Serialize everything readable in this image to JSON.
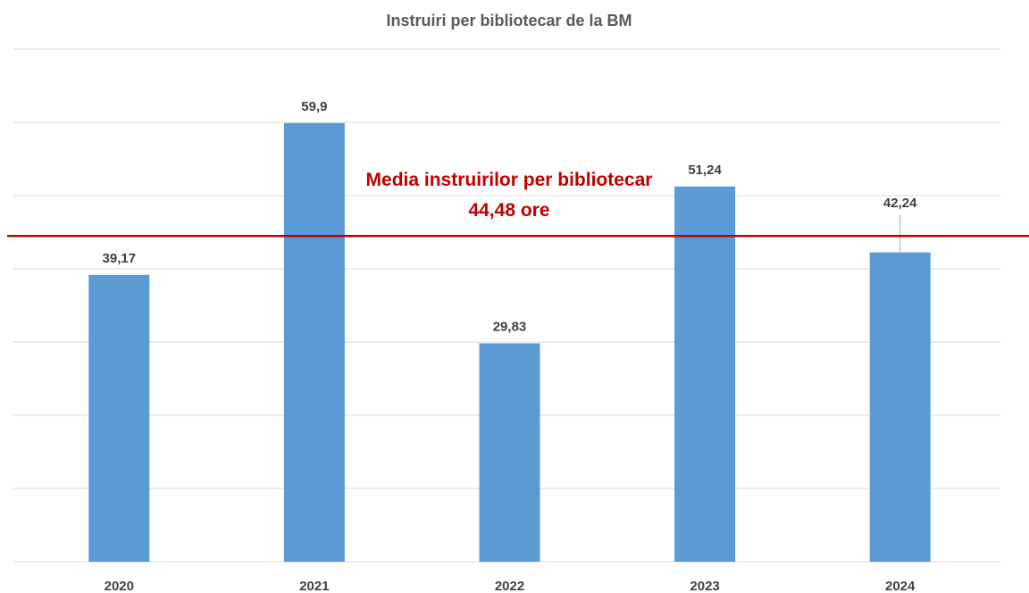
{
  "chart_data": {
    "type": "bar",
    "title": "Instruiri per bibliotecar de la BM",
    "categories": [
      "2020",
      "2021",
      "2022",
      "2023",
      "2024"
    ],
    "values": [
      39.17,
      59.9,
      29.83,
      51.24,
      42.24
    ],
    "value_labels": [
      "39,17",
      "59,9",
      "29,83",
      "51,24",
      "42,24"
    ],
    "color": "#5b9bd5",
    "ylim": [
      0,
      70
    ],
    "yticks": [
      0,
      10,
      20,
      30,
      40,
      50,
      60,
      70
    ],
    "grid": true,
    "reference_line": {
      "value": 44.48,
      "label": "Media instruirilor per bibliotecar",
      "value_label": "44,48 ore",
      "color": "#c00000"
    }
  }
}
